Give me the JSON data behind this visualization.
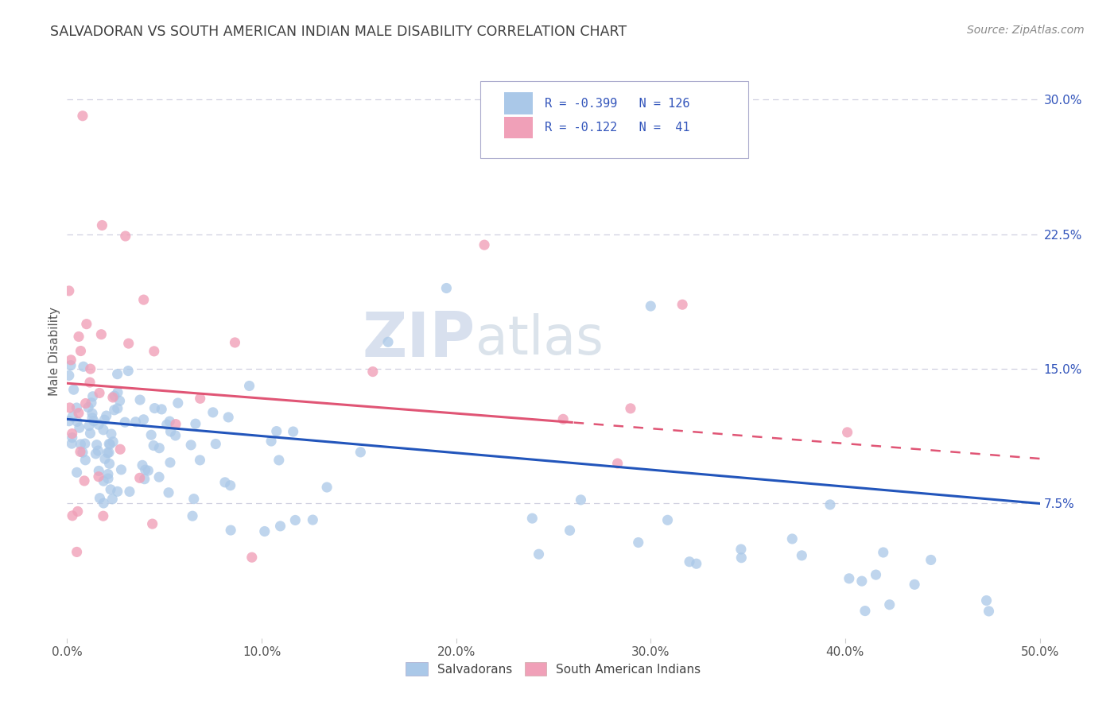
{
  "title": "SALVADORAN VS SOUTH AMERICAN INDIAN MALE DISABILITY CORRELATION CHART",
  "source": "Source: ZipAtlas.com",
  "ylabel": "Male Disability",
  "watermark_zip": "ZIP",
  "watermark_atlas": "atlas",
  "xlim": [
    0.0,
    0.5
  ],
  "ylim": [
    0.0,
    0.32
  ],
  "xticks": [
    0.0,
    0.1,
    0.2,
    0.3,
    0.4,
    0.5
  ],
  "yticks_right": [
    0.075,
    0.15,
    0.225,
    0.3
  ],
  "blue_color": "#aac8e8",
  "pink_color": "#f0a0b8",
  "blue_line_color": "#2255bb",
  "pink_line_color": "#e05575",
  "legend_text_color": "#3355bb",
  "title_color": "#404040",
  "source_color": "#888888",
  "grid_color": "#d0d0e0",
  "background_color": "#ffffff"
}
